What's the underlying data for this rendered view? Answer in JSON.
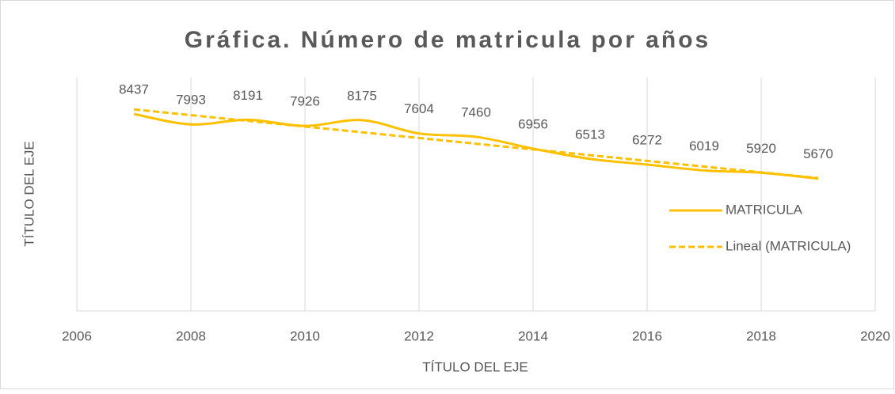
{
  "chart_data": {
    "type": "line",
    "title": "Gráfica. Número de matricula por años",
    "x_label": "TÍTULO DEL EJE",
    "y_label": "TÍTULO DEL EJE",
    "x": [
      2007,
      2008,
      2009,
      2010,
      2011,
      2012,
      2013,
      2014,
      2015,
      2016,
      2017,
      2018,
      2019
    ],
    "series": [
      {
        "name": "MATRICULA",
        "color": "#FFC000",
        "smooth": true,
        "data_labels": true,
        "values": [
          8437,
          7993,
          8191,
          7926,
          8175,
          7604,
          7460,
          6956,
          6513,
          6272,
          6019,
          5920,
          5670
        ]
      },
      {
        "name": "Lineal (MATRICULA)",
        "color": "#FFC000",
        "dashed": true,
        "x": [
          2007,
          2019
        ],
        "values": [
          8634,
          5694
        ]
      }
    ],
    "xlim": [
      2006,
      2020
    ],
    "xticks": [
      2006,
      2008,
      2010,
      2012,
      2014,
      2016,
      2018,
      2020
    ],
    "ylim": [
      0,
      10000
    ],
    "grid": true,
    "legend": "right"
  }
}
